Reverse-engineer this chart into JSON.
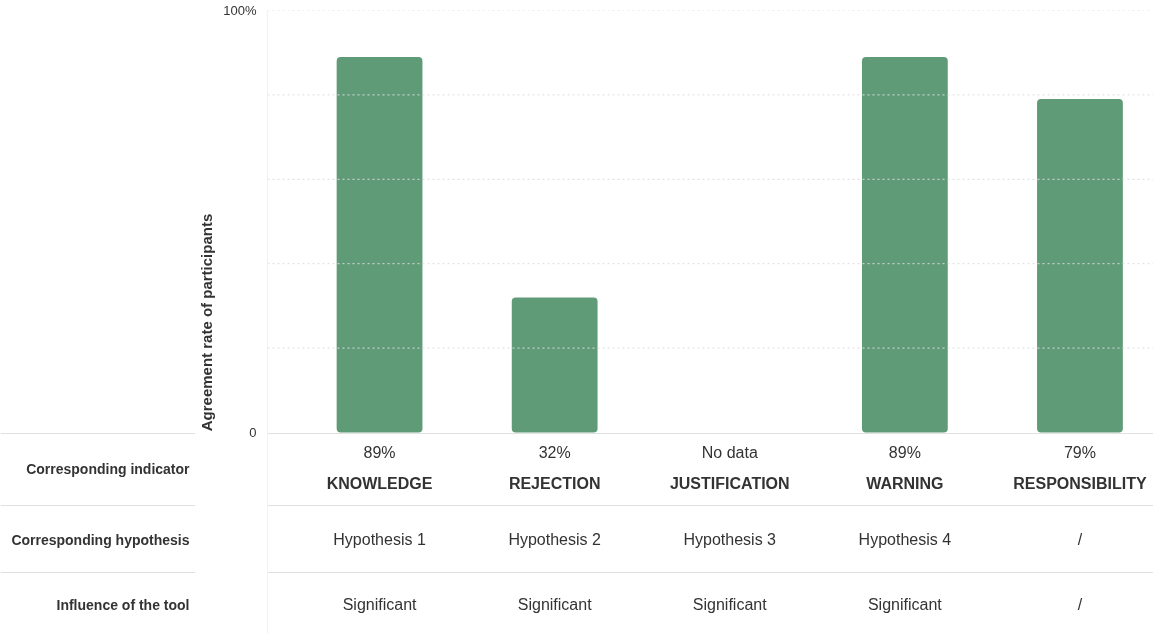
{
  "chart_data": {
    "type": "bar",
    "ylabel": "Agreement rate of participants",
    "categories": [
      "KNOWLEDGE",
      "REJECTION",
      "JUSTIFICATION",
      "WARNING",
      "RESPONSIBILITY"
    ],
    "values": [
      89,
      32,
      null,
      89,
      79
    ],
    "value_labels": [
      "89%",
      "32%",
      "No data",
      "89%",
      "79%"
    ],
    "color": "#5f9b77",
    "ylim": [
      0,
      100
    ],
    "yticks": [
      0,
      {
        "value": 20,
        "label": null
      },
      {
        "value": 40,
        "label": null
      },
      {
        "value": 60,
        "label": null
      },
      {
        "value": 80,
        "label": null
      },
      {
        "value": 100,
        "label": "100%"
      }
    ],
    "grid": "y",
    "annotations": [
      "Corresponding indicator",
      "Corresponding hypothesis",
      "Hypothesis 1",
      "Hypothesis 2",
      "Hypothesis 3",
      "Hypothesis 4",
      "/",
      "Influence of the tool",
      "Significant",
      "Significant",
      "Significant",
      "Significant",
      "/"
    ]
  }
}
